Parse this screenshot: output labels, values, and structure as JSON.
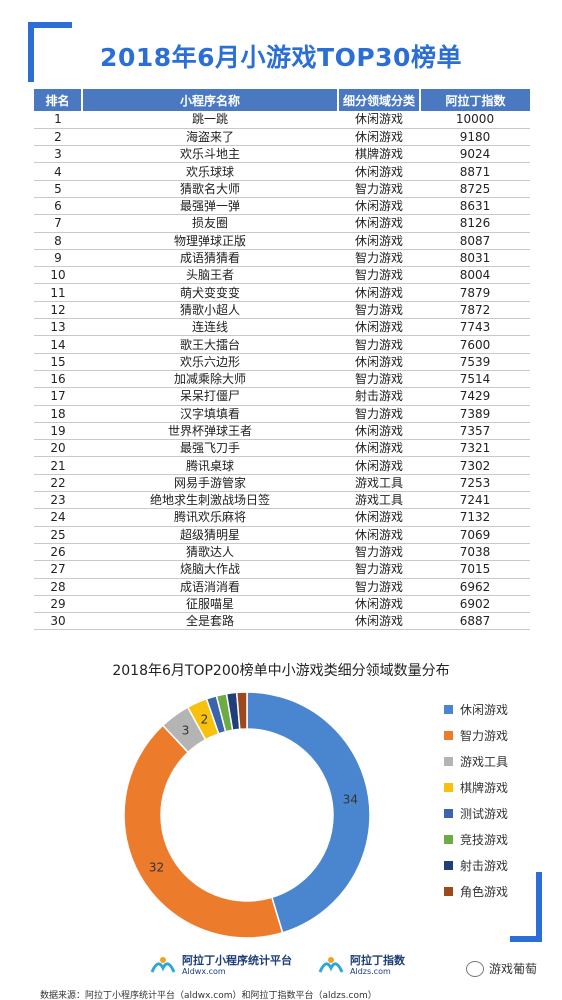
{
  "title": "2018年6月小游戏TOP30榜单",
  "table": {
    "headers": [
      "排名",
      "小程序名称",
      "细分领域分类",
      "阿拉丁指数"
    ],
    "rows": [
      [
        "1",
        "跳一跳",
        "休闲游戏",
        "10000"
      ],
      [
        "2",
        "海盗来了",
        "休闲游戏",
        "9180"
      ],
      [
        "3",
        "欢乐斗地主",
        "棋牌游戏",
        "9024"
      ],
      [
        "4",
        "欢乐球球",
        "休闲游戏",
        "8871"
      ],
      [
        "5",
        "猜歌名大师",
        "智力游戏",
        "8725"
      ],
      [
        "6",
        "最强弹一弹",
        "休闲游戏",
        "8631"
      ],
      [
        "7",
        "损友圈",
        "休闲游戏",
        "8126"
      ],
      [
        "8",
        "物理弹球正版",
        "休闲游戏",
        "8087"
      ],
      [
        "9",
        "成语猜猜看",
        "智力游戏",
        "8031"
      ],
      [
        "10",
        "头脑王者",
        "智力游戏",
        "8004"
      ],
      [
        "11",
        "萌犬变变变",
        "休闲游戏",
        "7879"
      ],
      [
        "12",
        "猜歌小超人",
        "智力游戏",
        "7872"
      ],
      [
        "13",
        "连连线",
        "休闲游戏",
        "7743"
      ],
      [
        "14",
        "歌王大擂台",
        "智力游戏",
        "7600"
      ],
      [
        "15",
        "欢乐六边形",
        "休闲游戏",
        "7539"
      ],
      [
        "16",
        "加减乘除大师",
        "智力游戏",
        "7514"
      ],
      [
        "17",
        "呆呆打僵尸",
        "射击游戏",
        "7429"
      ],
      [
        "18",
        "汉字填填看",
        "智力游戏",
        "7389"
      ],
      [
        "19",
        "世界杯弹球王者",
        "休闲游戏",
        "7357"
      ],
      [
        "20",
        "最强飞刀手",
        "休闲游戏",
        "7321"
      ],
      [
        "21",
        "腾讯桌球",
        "休闲游戏",
        "7302"
      ],
      [
        "22",
        "网易手游管家",
        "游戏工具",
        "7253"
      ],
      [
        "23",
        "绝地求生刺激战场日签",
        "游戏工具",
        "7241"
      ],
      [
        "24",
        "腾讯欢乐麻将",
        "休闲游戏",
        "7132"
      ],
      [
        "25",
        "超级猜明星",
        "休闲游戏",
        "7069"
      ],
      [
        "26",
        "猜歌达人",
        "智力游戏",
        "7038"
      ],
      [
        "27",
        "烧脑大作战",
        "智力游戏",
        "7015"
      ],
      [
        "28",
        "成语消消看",
        "智力游戏",
        "6962"
      ],
      [
        "29",
        "征服喵星",
        "休闲游戏",
        "6902"
      ],
      [
        "30",
        "全是套路",
        "休闲游戏",
        "6887"
      ]
    ]
  },
  "chart_data": {
    "type": "pie",
    "title": "2018年6月TOP200榜单中小游戏类细分领域数量分布",
    "legend_position": "right",
    "categories": [
      "休闲游戏",
      "智力游戏",
      "游戏工具",
      "棋牌游戏",
      "测试游戏",
      "竞技游戏",
      "射击游戏",
      "角色游戏"
    ],
    "values": [
      34,
      32,
      3,
      2,
      1,
      1,
      1,
      1
    ],
    "data_labels": [
      "34",
      "32",
      "3",
      "2",
      "",
      "",
      "",
      ""
    ],
    "colors": [
      "#4a86d0",
      "#ec7b2c",
      "#b4b4b4",
      "#f7c10d",
      "#3b64ad",
      "#6dab45",
      "#1f3e7a",
      "#9c4a1c"
    ]
  },
  "footer": {
    "logo1_name": "阿拉丁小程序统计平台",
    "logo1_url": "Aldwx.com",
    "logo2_name": "阿拉丁指数",
    "logo2_url": "Aldzs.com",
    "source": "数据来源：阿拉丁小程序统计平台（aldwx.com）和阿拉丁指数平台（aldzs.com）",
    "wechat_name": "游戏葡萄"
  }
}
